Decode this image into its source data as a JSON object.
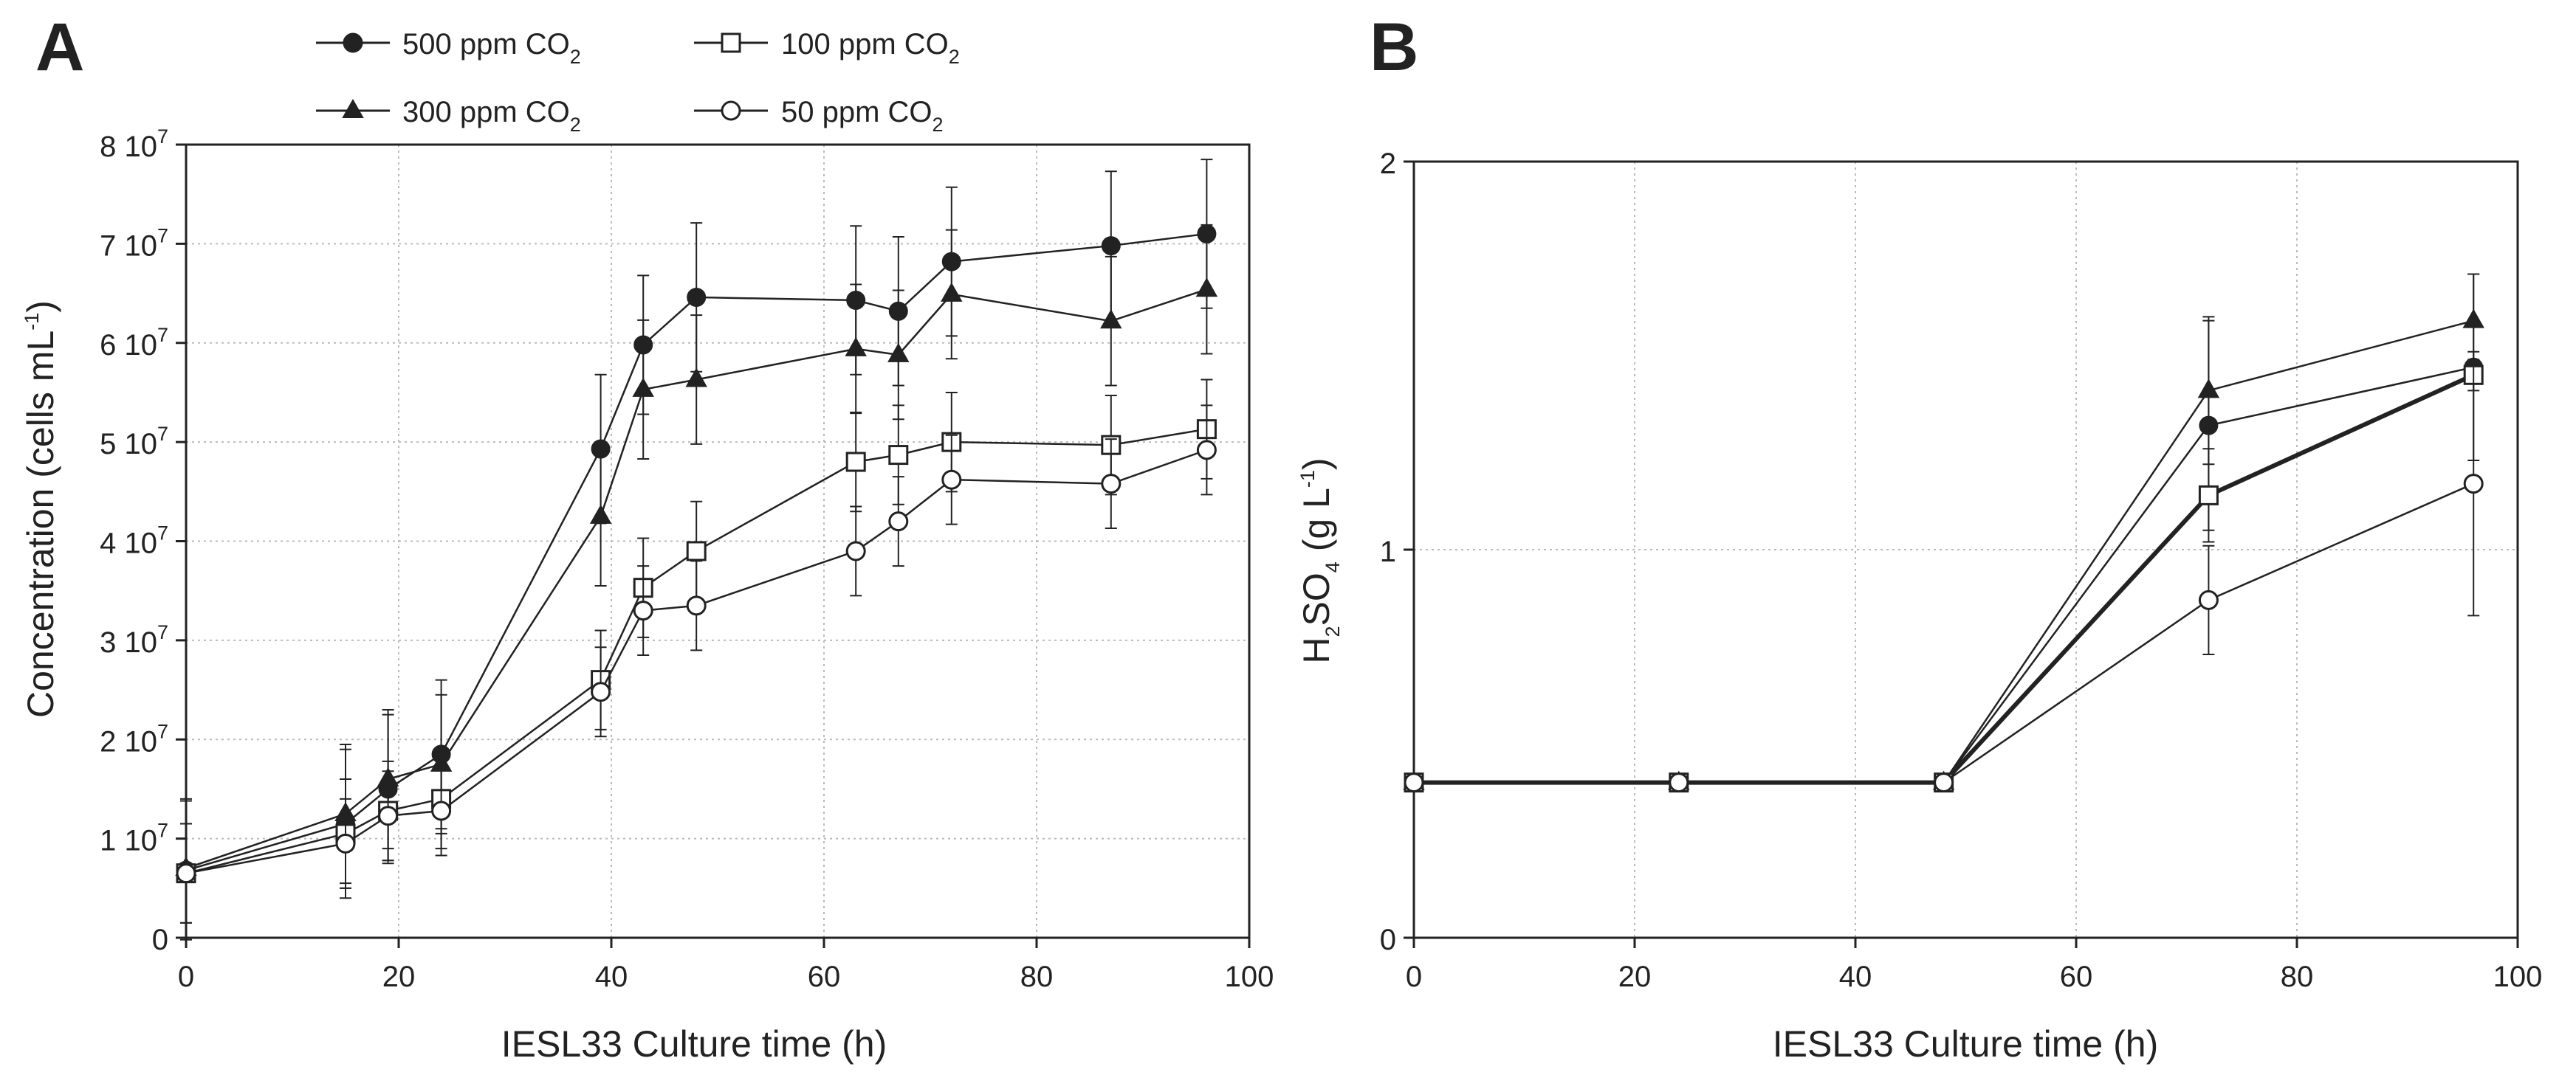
{
  "figure": {
    "panel_labels": [
      "A",
      "B"
    ]
  },
  "legend": {
    "entries": [
      {
        "text": "500 ppm CO",
        "sub": "2",
        "marker": "filled-circle"
      },
      {
        "text": "100 ppm CO",
        "sub": "2",
        "marker": "open-square"
      },
      {
        "text": "300 ppm CO",
        "sub": "2",
        "marker": "filled-triangle"
      },
      {
        "text": "50 ppm CO",
        "sub": "2",
        "marker": "open-circle"
      }
    ]
  },
  "colors": {
    "line": "#222222",
    "grid": "#bbbbbb",
    "background": "#ffffff"
  },
  "chart_data": [
    {
      "panel": "A",
      "type": "line",
      "xlabel": "IESL33 Culture time (h)",
      "ylabel": "Concentration (cells mL",
      "ylabel_sup": "-1",
      "ylabel_end": ")",
      "xlim": [
        0,
        100
      ],
      "ylim": [
        0,
        80000000
      ],
      "xticks": [
        0,
        20,
        40,
        60,
        80,
        100
      ],
      "yticks": [
        {
          "value": 0,
          "base": "0",
          "exp": ""
        },
        {
          "value": 10000000,
          "base": "1 10",
          "exp": "7"
        },
        {
          "value": 20000000,
          "base": "2 10",
          "exp": "7"
        },
        {
          "value": 30000000,
          "base": "3 10",
          "exp": "7"
        },
        {
          "value": 40000000,
          "base": "4 10",
          "exp": "7"
        },
        {
          "value": 50000000,
          "base": "5 10",
          "exp": "7"
        },
        {
          "value": 60000000,
          "base": "6 10",
          "exp": "7"
        },
        {
          "value": 70000000,
          "base": "7 10",
          "exp": "7"
        },
        {
          "value": 80000000,
          "base": "8 10",
          "exp": "7"
        }
      ],
      "grid": true,
      "series": [
        {
          "name": "500 ppm CO2",
          "marker": "filled-circle",
          "x": [
            0,
            15,
            19,
            24,
            39,
            43,
            48,
            63,
            67,
            72,
            87,
            96
          ],
          "y": [
            6800000,
            11500000,
            15000000,
            18500000,
            49300000,
            59800000,
            64600000,
            64300000,
            63200000,
            68200000,
            69800000,
            71000000
          ],
          "err": [
            7000000,
            7500000,
            7500000,
            7500000,
            7500000,
            7000000,
            7500000,
            7500000,
            7500000,
            7500000,
            7500000,
            7500000
          ]
        },
        {
          "name": "300 ppm CO2",
          "marker": "filled-triangle",
          "x": [
            0,
            15,
            19,
            24,
            39,
            43,
            48,
            63,
            67,
            72,
            87,
            96
          ],
          "y": [
            7000000,
            12500000,
            16000000,
            17500000,
            42500000,
            55300000,
            56300000,
            59400000,
            58800000,
            64900000,
            62200000,
            65400000
          ],
          "err": [
            7000000,
            7000000,
            7000000,
            7000000,
            7000000,
            7000000,
            6500000,
            6500000,
            6500000,
            6500000,
            6500000,
            6500000
          ]
        },
        {
          "name": "100 ppm CO2",
          "marker": "open-square",
          "x": [
            0,
            15,
            19,
            24,
            39,
            43,
            48,
            63,
            67,
            72,
            87,
            96
          ],
          "y": [
            6500000,
            10500000,
            12800000,
            14000000,
            26000000,
            35300000,
            39000000,
            48000000,
            48700000,
            50000000,
            49700000,
            51300000
          ],
          "err": [
            5000000,
            5500000,
            5000000,
            5000000,
            5000000,
            5000000,
            5000000,
            5000000,
            5000000,
            5000000,
            5000000,
            5000000
          ]
        },
        {
          "name": "50 ppm CO2",
          "marker": "open-circle",
          "x": [
            0,
            15,
            19,
            24,
            39,
            43,
            48,
            63,
            67,
            72,
            87,
            96
          ],
          "y": [
            6500000,
            9500000,
            12300000,
            12800000,
            24800000,
            33000000,
            33500000,
            39000000,
            42000000,
            46200000,
            45800000,
            49200000
          ],
          "err": [
            5000000,
            4500000,
            4500000,
            4500000,
            4500000,
            4500000,
            4500000,
            4500000,
            4500000,
            4500000,
            4500000,
            4500000
          ]
        }
      ]
    },
    {
      "panel": "B",
      "type": "line",
      "xlabel": "IESL33 Culture time (h)",
      "ylabel_parts": {
        "a": "H",
        "a_sub": "2",
        "b": "SO",
        "b_sub": "4",
        "c": " (g L",
        "c_sup": "-1",
        "d": ")"
      },
      "xlim": [
        0,
        100
      ],
      "ylim": [
        0,
        2
      ],
      "xticks": [
        0,
        20,
        40,
        60,
        80,
        100
      ],
      "yticks": [
        0,
        1,
        2
      ],
      "grid": true,
      "series": [
        {
          "name": "500 ppm CO2",
          "marker": "filled-circle",
          "x": [
            0,
            24,
            48,
            72,
            96
          ],
          "y": [
            0.4,
            0.4,
            0.4,
            1.32,
            1.47
          ],
          "err": [
            0,
            0,
            0,
            0.27,
            0.24
          ]
        },
        {
          "name": "300 ppm CO2",
          "marker": "filled-triangle",
          "x": [
            0,
            24,
            48,
            72,
            96
          ],
          "y": [
            0.4,
            0.4,
            0.4,
            1.41,
            1.59
          ],
          "err": [
            0,
            0,
            0,
            0.19,
            0.12
          ]
        },
        {
          "name": "100 ppm CO2",
          "marker": "open-square",
          "x": [
            0,
            24,
            48,
            72,
            96
          ],
          "y": [
            0.4,
            0.4,
            0.4,
            1.14,
            1.45
          ],
          "err": [
            0,
            0,
            0,
            0.12,
            0.04
          ],
          "bold": true
        },
        {
          "name": "50 ppm CO2",
          "marker": "open-circle",
          "x": [
            0,
            24,
            48,
            72,
            96
          ],
          "y": [
            0.4,
            0.4,
            0.4,
            0.87,
            1.17
          ],
          "err": [
            0,
            0,
            0,
            0.14,
            0.34
          ]
        }
      ]
    }
  ]
}
